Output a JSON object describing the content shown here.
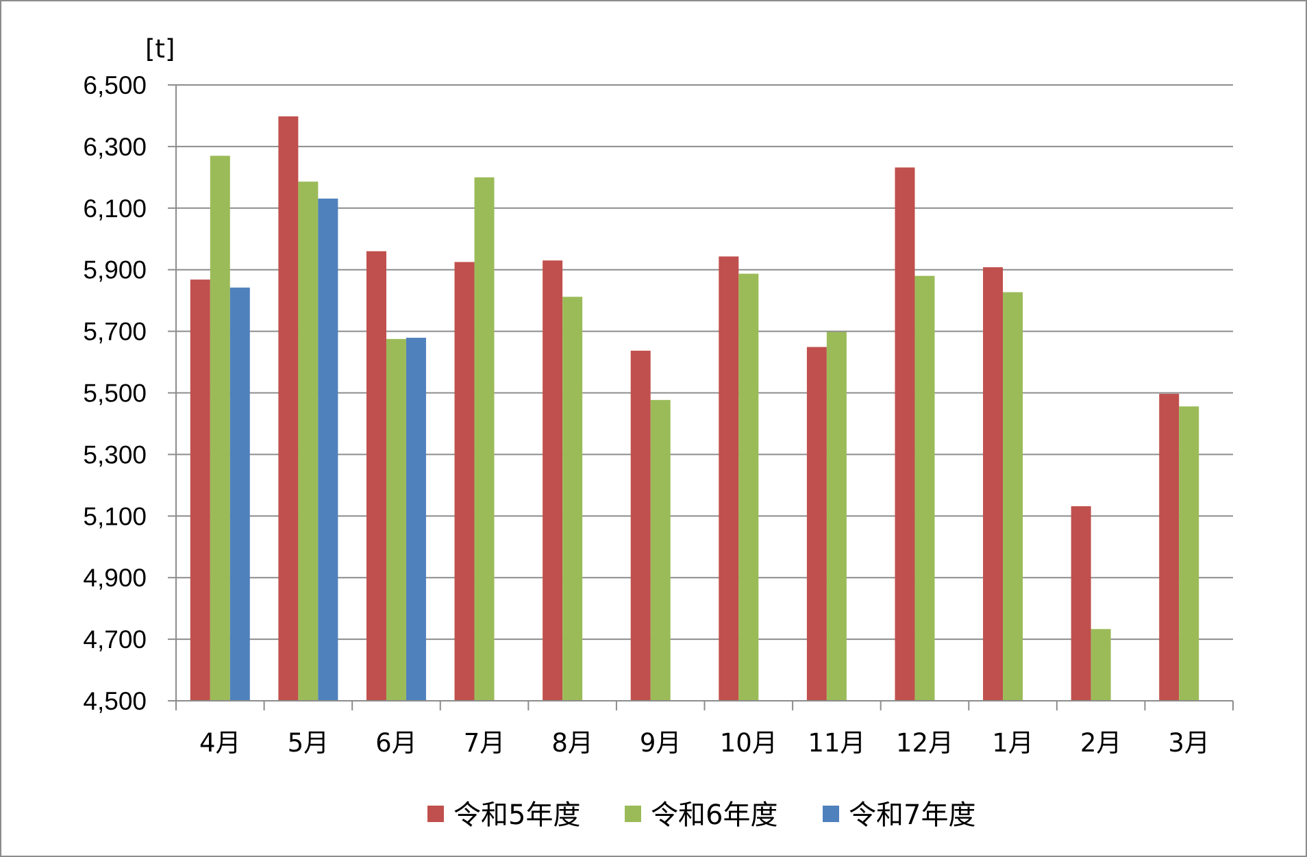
{
  "chart_data": {
    "type": "bar",
    "unit_label": "[t]",
    "categories": [
      "4月",
      "5月",
      "6月",
      "7月",
      "8月",
      "9月",
      "10月",
      "11月",
      "12月",
      "1月",
      "2月",
      "3月"
    ],
    "series": [
      {
        "name": "令和5年度",
        "color": "#c0504d",
        "values": [
          5868,
          6398,
          5960,
          5925,
          5930,
          5637,
          5943,
          5649,
          6232,
          5908,
          5132,
          5497
        ]
      },
      {
        "name": "令和6年度",
        "color": "#9bbb59",
        "values": [
          6270,
          6186,
          5675,
          6200,
          5812,
          5477,
          5887,
          5698,
          5880,
          5827,
          4733,
          5456
        ]
      },
      {
        "name": "令和7年度",
        "color": "#4f81bd",
        "values": [
          5842,
          6131,
          5679,
          null,
          null,
          null,
          null,
          null,
          null,
          null,
          null,
          null
        ]
      }
    ],
    "ylim": [
      4500,
      6500
    ],
    "yticks": [
      4500,
      4700,
      4900,
      5100,
      5300,
      5500,
      5700,
      5900,
      6100,
      6300,
      6500
    ],
    "ytick_labels": [
      "4,500",
      "4,700",
      "4,900",
      "5,100",
      "5,300",
      "5,500",
      "5,700",
      "5,900",
      "6,100",
      "6,300",
      "6,500"
    ],
    "grid": true,
    "legend_position": "bottom"
  }
}
